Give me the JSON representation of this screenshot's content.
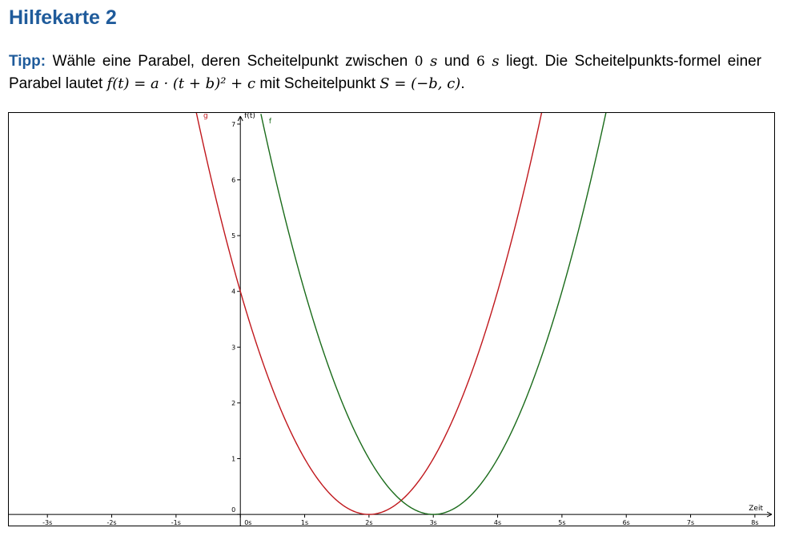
{
  "title": "Hilfekarte 2",
  "tip": {
    "label": "Tipp:",
    "part1": "Wähle eine Parabel, deren Scheitelpunkt zwischen",
    "value1": "0",
    "unit1": "s",
    "part2": "und",
    "value2": "6",
    "unit2": "s",
    "part3": "liegt. Die Scheitelpunkts-formel einer Parabel lautet",
    "formula": "f(t) = a · (t + b)² + c",
    "part4": "mit Scheitelpunkt",
    "vertex": "S = (−b, c)",
    "end": "."
  },
  "colors": {
    "heading": "#1f5b9b",
    "g": "#c0171c",
    "f": "#1a6b1a"
  },
  "chart_data": {
    "type": "line",
    "xlabel": "Zeit",
    "ylabel": "f(t)",
    "xlim": [
      -3.6,
      8.3
    ],
    "ylim": [
      -0.2,
      7.2
    ],
    "grid": false,
    "x_ticks": [
      {
        "value": -3,
        "label": "-3s"
      },
      {
        "value": -2,
        "label": "-2s"
      },
      {
        "value": -1,
        "label": "-1s"
      },
      {
        "value": 0,
        "label": "0s"
      },
      {
        "value": 1,
        "label": "1s"
      },
      {
        "value": 2,
        "label": "2s"
      },
      {
        "value": 3,
        "label": "3s"
      },
      {
        "value": 4,
        "label": "4s"
      },
      {
        "value": 5,
        "label": "5s"
      },
      {
        "value": 6,
        "label": "6s"
      },
      {
        "value": 7,
        "label": "7s"
      },
      {
        "value": 8,
        "label": "8s"
      }
    ],
    "y_ticks": [
      {
        "value": 0,
        "label": "0"
      },
      {
        "value": 1,
        "label": "1"
      },
      {
        "value": 2,
        "label": "2"
      },
      {
        "value": 3,
        "label": "3"
      },
      {
        "value": 4,
        "label": "4"
      },
      {
        "value": 5,
        "label": "5"
      },
      {
        "value": 6,
        "label": "6"
      },
      {
        "value": 7,
        "label": "7"
      }
    ],
    "series": [
      {
        "name": "g",
        "color": "#c0171c",
        "a": 1,
        "b": -2,
        "c": 0,
        "t_range": [
          -0.7,
          4.7
        ],
        "vertex": [
          2,
          0
        ]
      },
      {
        "name": "f",
        "color": "#1a6b1a",
        "a": 1,
        "b": -3,
        "c": 0,
        "t_range": [
          0.32,
          5.7
        ],
        "vertex": [
          3,
          0
        ]
      }
    ]
  }
}
